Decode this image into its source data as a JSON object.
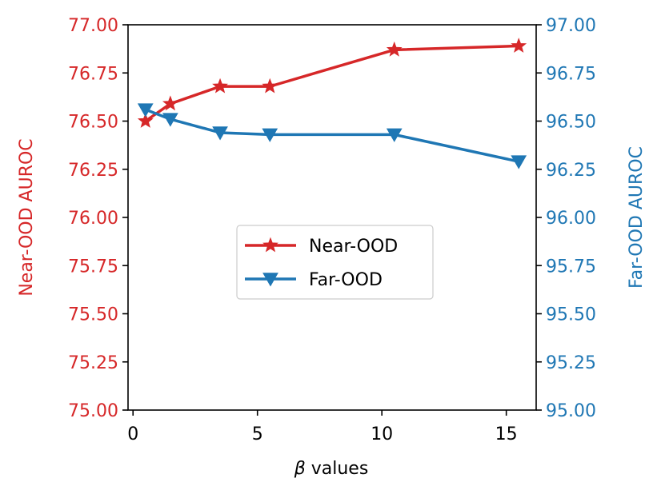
{
  "chart_data": {
    "type": "line",
    "xlabel_prefix": "β",
    "xlabel_suffix": " values",
    "x": [
      0.5,
      1.5,
      3.5,
      5.5,
      10.5,
      15.5
    ],
    "xlim": [
      -0.2,
      16.2
    ],
    "xticks": [
      0,
      5,
      10,
      15
    ],
    "series": [
      {
        "name": "Near-OOD",
        "axis": "left",
        "color": "#d62728",
        "marker": "star",
        "values": [
          76.5,
          76.59,
          76.68,
          76.68,
          76.87,
          76.89
        ]
      },
      {
        "name": "Far-OOD",
        "axis": "right",
        "color": "#1f77b4",
        "marker": "triangle-down",
        "values": [
          96.56,
          96.51,
          96.44,
          96.43,
          96.43,
          96.29
        ]
      }
    ],
    "left_axis": {
      "label": "Near-OOD AUROC",
      "color": "#d62728",
      "ylim": [
        75.0,
        77.0
      ],
      "ticks": [
        "75.00",
        "75.25",
        "75.50",
        "75.75",
        "76.00",
        "76.25",
        "76.50",
        "76.75",
        "77.00"
      ]
    },
    "right_axis": {
      "label": "Far-OOD AUROC",
      "color": "#1f77b4",
      "ylim": [
        95.0,
        97.0
      ],
      "ticks": [
        "95.00",
        "95.25",
        "95.50",
        "95.75",
        "96.00",
        "96.25",
        "96.50",
        "96.75",
        "97.00"
      ]
    },
    "legend_location": "center",
    "grid": false
  }
}
